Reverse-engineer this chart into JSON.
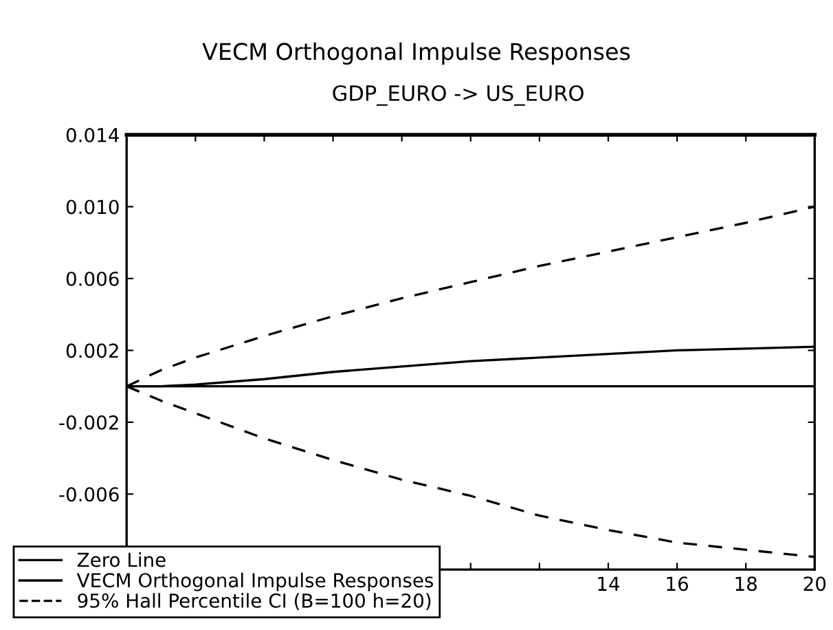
{
  "chart_data": {
    "type": "line",
    "title": "VECM Orthogonal Impulse Responses",
    "subtitle": "GDP_EURO -> US_EURO",
    "x": [
      0,
      1,
      2,
      4,
      6,
      8,
      10,
      12,
      14,
      16,
      18,
      20
    ],
    "series": [
      {
        "name": "Zero Line",
        "color": "#000000",
        "line_style": "solid",
        "values": [
          0,
          0,
          0,
          0,
          0,
          0,
          0,
          0,
          0,
          0,
          0,
          0
        ]
      },
      {
        "name": "VECM Orthogonal Impulse Responses",
        "color": "#000000",
        "line_style": "solid",
        "values": [
          0,
          0,
          0.0001,
          0.0004,
          0.0008,
          0.0011,
          0.0014,
          0.0016,
          0.0018,
          0.002,
          0.0021,
          0.0022
        ]
      },
      {
        "name": "95% Hall Percentile CI (B=100 h=20)",
        "color": "#000000",
        "line_style": "dashed",
        "values": [
          0,
          0.0009,
          0.0016,
          0.0028,
          0.0039,
          0.0049,
          0.0058,
          0.0067,
          0.0075,
          0.0083,
          0.0091,
          0.01
        ]
      },
      {
        "color": "#000000",
        "line_style": "dashed",
        "values": [
          0,
          -0.0008,
          -0.0015,
          -0.0029,
          -0.0041,
          -0.0052,
          -0.0061,
          -0.0072,
          -0.008,
          -0.0087,
          -0.0091,
          -0.0095
        ]
      }
    ],
    "xlim": [
      0,
      20
    ],
    "ylim": [
      -0.0102,
      0.014
    ],
    "xticks": [
      {
        "value": 0,
        "label": null
      },
      {
        "value": 2,
        "label": null
      },
      {
        "value": 4,
        "label": null
      },
      {
        "value": 6,
        "label": null
      },
      {
        "value": 8,
        "label": null
      },
      {
        "value": 10,
        "label": null
      },
      {
        "value": 12,
        "label": null
      },
      14,
      16,
      18,
      20
    ],
    "yticks": [
      {
        "value": -0.006,
        "label": "-0.006"
      },
      {
        "value": -0.002,
        "label": "-0.002"
      },
      {
        "value": 0.002,
        "label": "0.002"
      },
      {
        "value": 0.006,
        "label": "0.006"
      },
      {
        "value": 0.01,
        "label": "0.010"
      },
      {
        "value": 0.014,
        "label": "0.014"
      }
    ],
    "grid": false,
    "legend": "bottom left",
    "marker": "none"
  }
}
